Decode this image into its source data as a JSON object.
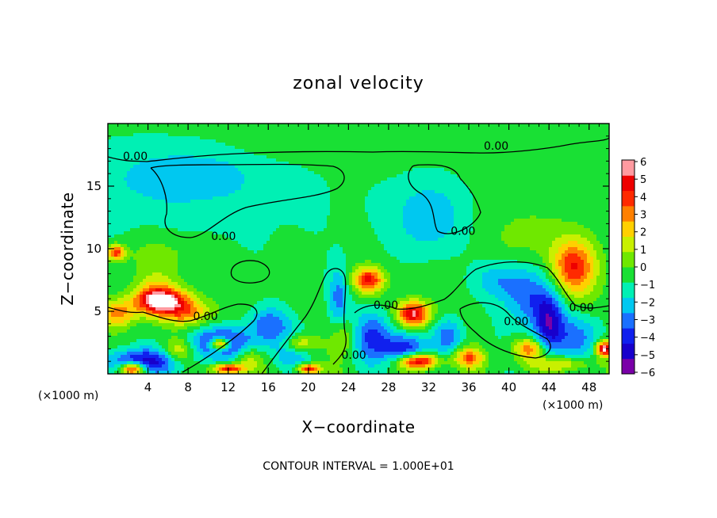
{
  "chart_data": {
    "type": "heatmap",
    "title": "zonal velocity",
    "xlabel": "X−coordinate",
    "ylabel": "Z−coordinate",
    "x_unit": "(×1000 m)",
    "y_unit": "(×1000 m)",
    "xlim": [
      0,
      50
    ],
    "ylim": [
      0,
      20
    ],
    "x_ticks": [
      4,
      8,
      12,
      16,
      20,
      24,
      28,
      32,
      36,
      40,
      44,
      48
    ],
    "x_tick_labels": [
      "4",
      "8",
      "12",
      "16",
      "20",
      "24",
      "28",
      "32",
      "36",
      "40",
      "44",
      "48"
    ],
    "y_ticks": [
      5,
      10,
      15
    ],
    "y_tick_labels": [
      "5",
      "10",
      "15"
    ],
    "colorbar": {
      "min": -6,
      "max": 6,
      "ticks": [
        6,
        5,
        4,
        3,
        2,
        1,
        0,
        -1,
        -2,
        -3,
        -4,
        -5,
        -6
      ],
      "tick_labels": [
        "6",
        "5",
        "4",
        "3",
        "2",
        "1",
        "0",
        "−1",
        "−2",
        "−3",
        "−4",
        "−5",
        "−6"
      ],
      "colors": [
        "#7a00a8",
        "#1800cc",
        "#1020ee",
        "#1a70ff",
        "#00c8f0",
        "#00f0b4",
        "#19e034",
        "#6fe800",
        "#c8f000",
        "#ffd000",
        "#ff8000",
        "#ff2a00",
        "#ee0000",
        "#ff9aa0"
      ]
    },
    "contour_label": "0.00",
    "contour_labels": [
      {
        "text": "0.00",
        "x": 1.5,
        "z": 17.1
      },
      {
        "text": "0.00",
        "x": 37.5,
        "z": 17.9
      },
      {
        "text": "0.00",
        "x": 10.3,
        "z": 10.7
      },
      {
        "text": "0.00",
        "x": 34.2,
        "z": 11.1
      },
      {
        "text": "0.00",
        "x": 8.5,
        "z": 4.3
      },
      {
        "text": "0.00",
        "x": 26.5,
        "z": 5.2
      },
      {
        "text": "0.00",
        "x": 23.3,
        "z": 1.2
      },
      {
        "text": "0.00",
        "x": 39.5,
        "z": 3.9
      },
      {
        "text": "0.00",
        "x": 46.0,
        "z": 5.0
      }
    ],
    "footnote": "CONTOUR INTERVAL = 1.000E+01",
    "features": [
      {
        "x": 0.0,
        "z": 14.0,
        "sx": 30,
        "sz": 6,
        "v": -0.8
      },
      {
        "x": 8.0,
        "z": 15.8,
        "sx": 7,
        "sz": 2.2,
        "v": -1.5
      },
      {
        "x": 32.0,
        "z": 12.5,
        "sx": 3.5,
        "sz": 2.8,
        "v": -2.0
      },
      {
        "x": 45.0,
        "z": 16.0,
        "sx": 6,
        "sz": 3,
        "v": -0.4
      },
      {
        "x": 22.0,
        "z": 18.5,
        "sx": 10,
        "sz": 1.4,
        "v": 0.7
      },
      {
        "x": 42.0,
        "z": 11.0,
        "sx": 4,
        "sz": 3,
        "v": 0.9
      },
      {
        "x": 5.0,
        "z": 9.5,
        "sx": 4,
        "sz": 1.8,
        "v": 1.2
      },
      {
        "x": 0.8,
        "z": 9.7,
        "sx": 0.9,
        "sz": 0.6,
        "v": 5.0
      },
      {
        "x": 5.5,
        "z": 5.8,
        "sx": 3.0,
        "sz": 1.0,
        "v": 5.5
      },
      {
        "x": 4.8,
        "z": 6.3,
        "sx": 2.0,
        "sz": 1.6,
        "v": 3.0
      },
      {
        "x": 1.0,
        "z": 4.8,
        "sx": 1.8,
        "sz": 1.0,
        "v": 3.5
      },
      {
        "x": 8.0,
        "z": 4.8,
        "sx": 2.5,
        "sz": 1.0,
        "v": 3.0
      },
      {
        "x": 11.5,
        "z": 2.5,
        "sx": 3.5,
        "sz": 1.2,
        "v": -4.2
      },
      {
        "x": 11.2,
        "z": 2.4,
        "sx": 1.0,
        "sz": 0.5,
        "v": 7.0
      },
      {
        "x": 3.5,
        "z": 1.0,
        "sx": 4,
        "sz": 1.0,
        "v": -4.5
      },
      {
        "x": 2.5,
        "z": 0.4,
        "sx": 1.2,
        "sz": 0.5,
        "v": 6.5
      },
      {
        "x": 7.0,
        "z": 1.8,
        "sx": 1.5,
        "sz": 1.0,
        "v": 3.0
      },
      {
        "x": 14.0,
        "z": 1.2,
        "sx": 1.2,
        "sz": 1.0,
        "v": 2.0
      },
      {
        "x": 12.0,
        "z": 0.4,
        "sx": 1.5,
        "sz": 0.4,
        "v": 6.0
      },
      {
        "x": 16.0,
        "z": 4.0,
        "sx": 2.0,
        "sz": 1.3,
        "v": -2.8
      },
      {
        "x": 18.5,
        "z": 2.0,
        "sx": 2.0,
        "sz": 1.6,
        "v": -2.5
      },
      {
        "x": 19.0,
        "z": 2.4,
        "sx": 1.6,
        "sz": 0.8,
        "v": 4.0
      },
      {
        "x": 20.0,
        "z": 0.4,
        "sx": 1.2,
        "sz": 0.4,
        "v": 6.0
      },
      {
        "x": 23.0,
        "z": 6.0,
        "sx": 1.0,
        "sz": 2.5,
        "v": -2.5
      },
      {
        "x": 23.5,
        "z": 3.0,
        "sx": 1.2,
        "sz": 1.5,
        "v": 2.0
      },
      {
        "x": 26.0,
        "z": 7.5,
        "sx": 1.5,
        "sz": 1.0,
        "v": 5.5
      },
      {
        "x": 26.5,
        "z": 3.0,
        "sx": 2.0,
        "sz": 2.0,
        "v": -3.5
      },
      {
        "x": 30.5,
        "z": 4.8,
        "sx": 1.6,
        "sz": 1.0,
        "v": 6.5
      },
      {
        "x": 31.0,
        "z": 1.0,
        "sx": 2.0,
        "sz": 0.6,
        "v": 6.5
      },
      {
        "x": 29.5,
        "z": 2.0,
        "sx": 2.0,
        "sz": 1.2,
        "v": -4.0
      },
      {
        "x": 34.0,
        "z": 3.0,
        "sx": 1.5,
        "sz": 1.5,
        "v": -3.0
      },
      {
        "x": 36.0,
        "z": 1.3,
        "sx": 1.5,
        "sz": 0.8,
        "v": 4.0
      },
      {
        "x": 39.0,
        "z": 7.5,
        "sx": 2.5,
        "sz": 1.5,
        "v": -2.0
      },
      {
        "x": 42.0,
        "z": 6.0,
        "sx": 2.5,
        "sz": 2.5,
        "v": -2.8
      },
      {
        "x": 44.0,
        "z": 4.0,
        "sx": 1.5,
        "sz": 2.5,
        "v": -4.0
      },
      {
        "x": 42.0,
        "z": 2.0,
        "sx": 1.5,
        "sz": 0.8,
        "v": 4.0
      },
      {
        "x": 46.5,
        "z": 8.5,
        "sx": 2.2,
        "sz": 2.2,
        "v": 5.0
      },
      {
        "x": 47.0,
        "z": 3.0,
        "sx": 2.5,
        "sz": 1.8,
        "v": -2.5
      },
      {
        "x": 49.5,
        "z": 2.0,
        "sx": 0.8,
        "sz": 0.6,
        "v": 7.0
      },
      {
        "x": 45.0,
        "z": 0.8,
        "sx": 3.0,
        "sz": 0.6,
        "v": 3.0
      }
    ]
  }
}
